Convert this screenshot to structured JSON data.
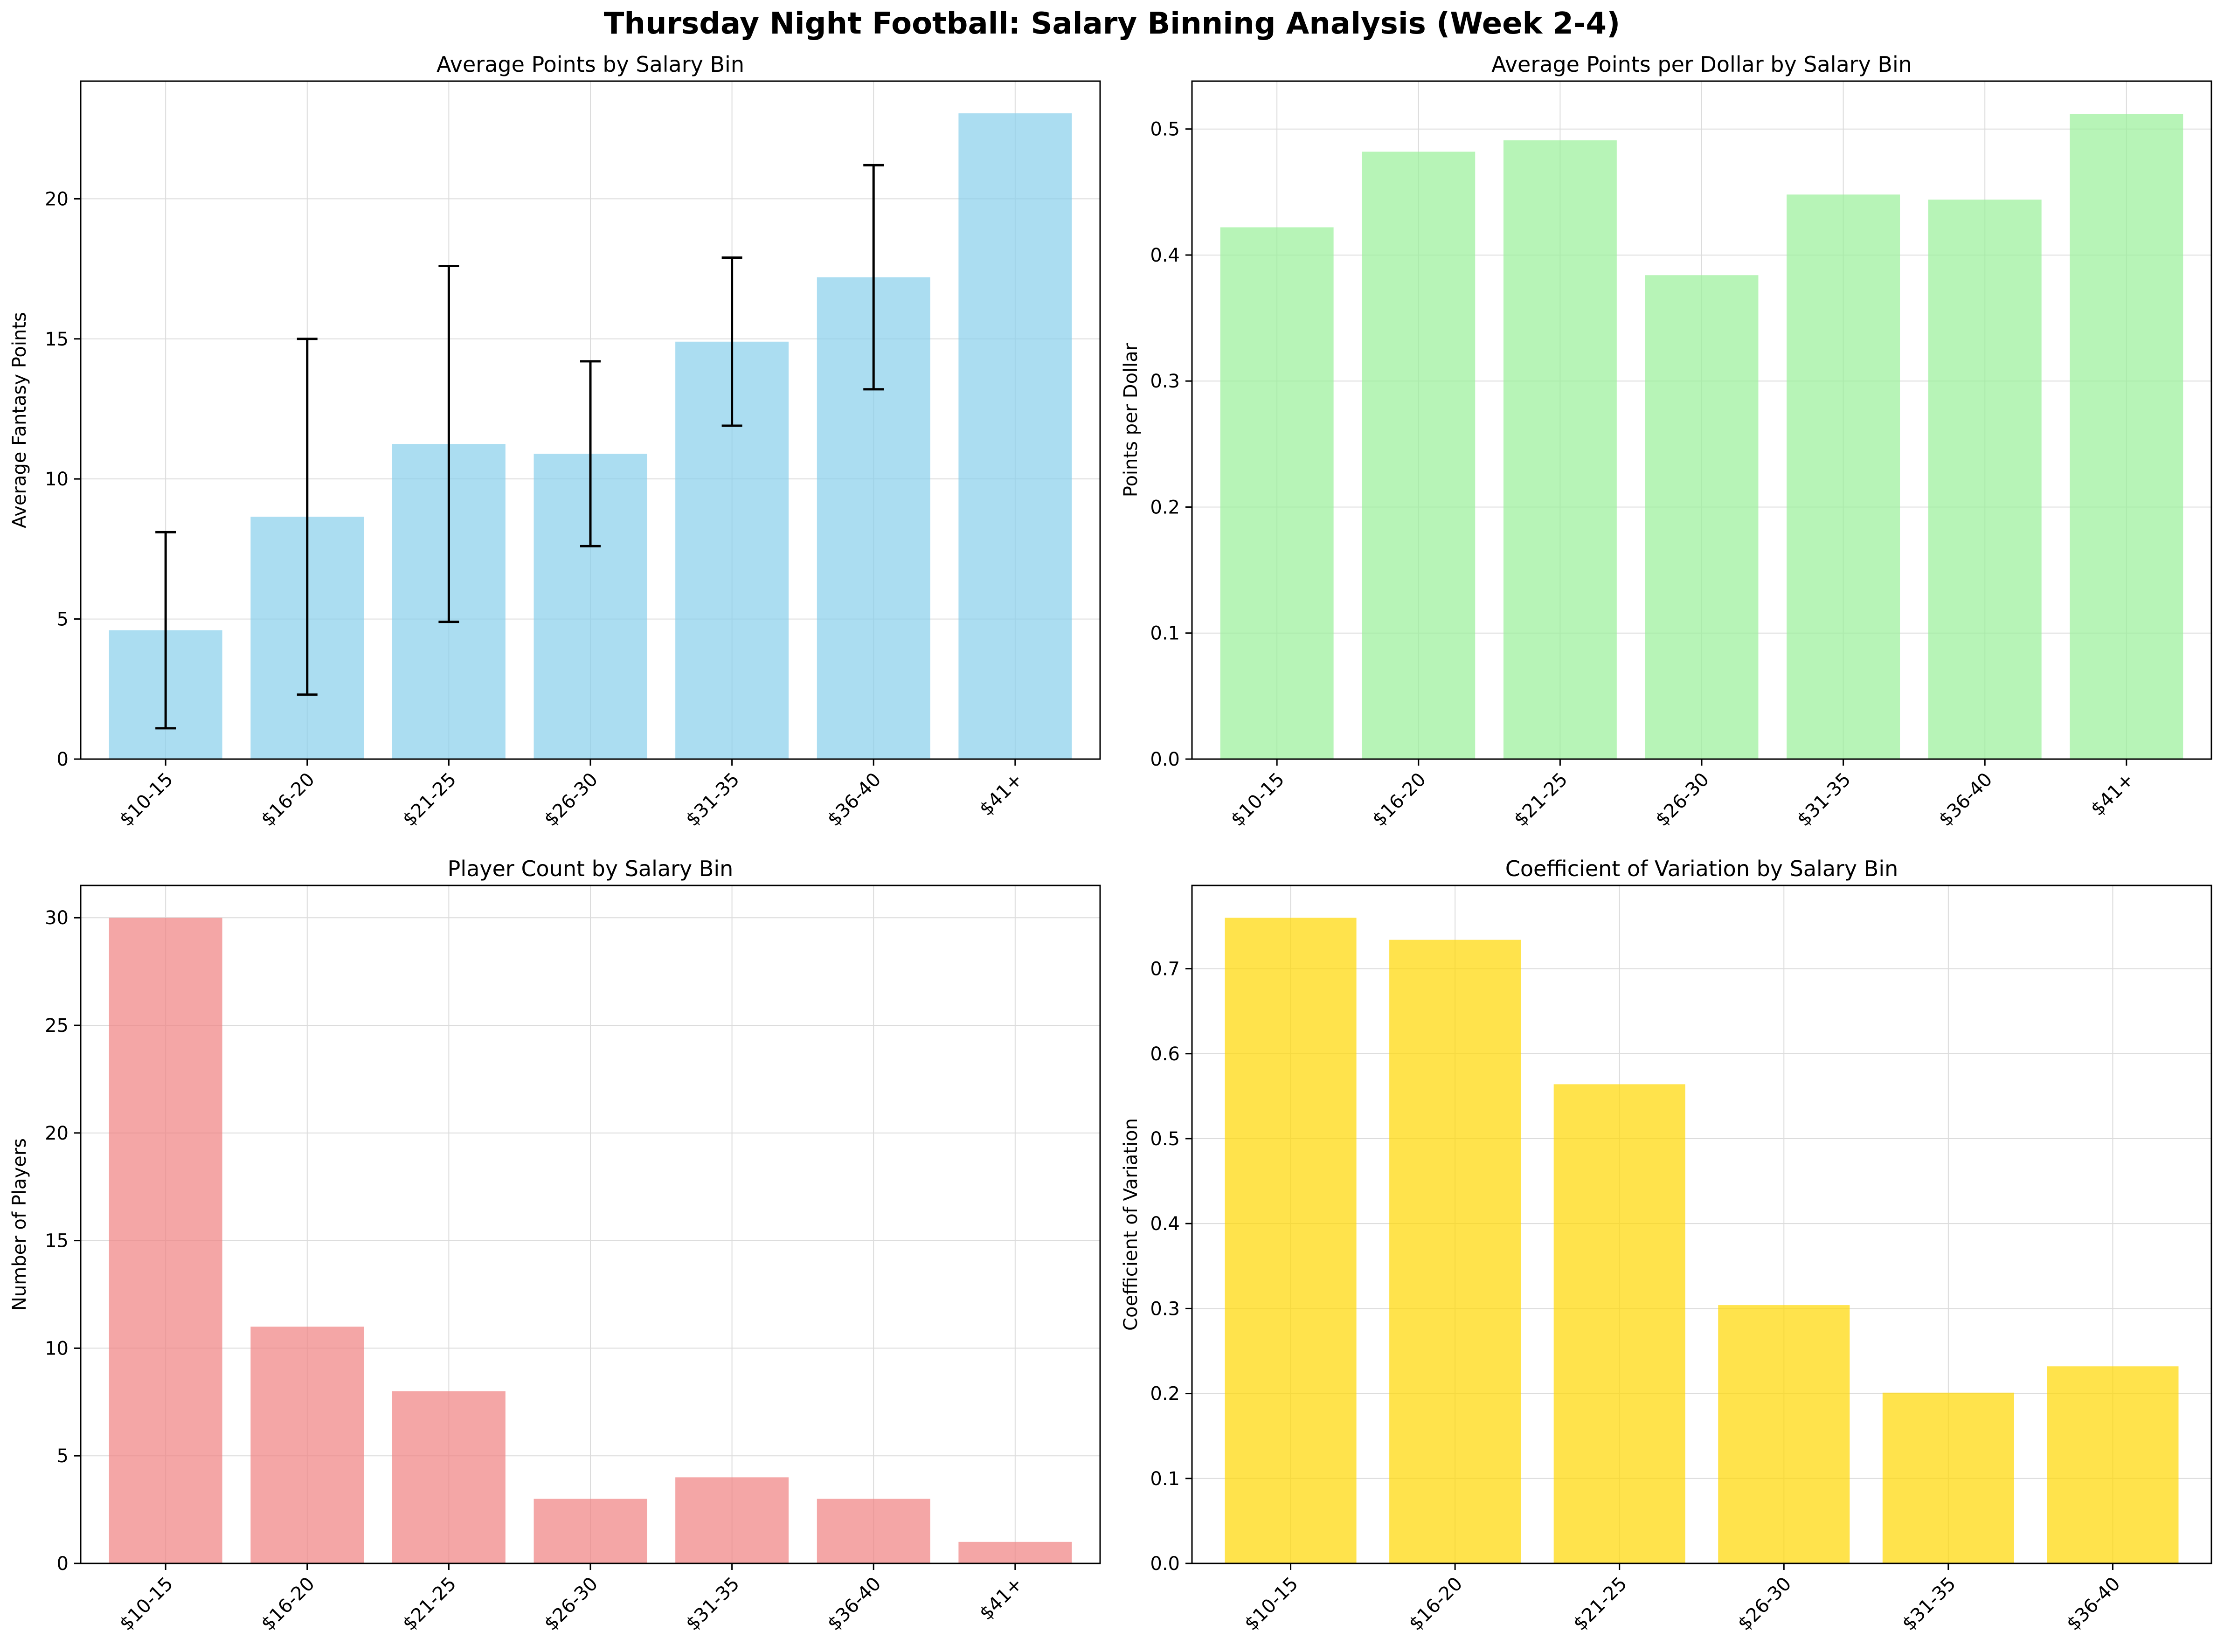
{
  "figure": {
    "title": "Thursday Night Football: Salary Binning Analysis (Week 2-4)"
  },
  "chart_data": [
    {
      "type": "bar",
      "title": "Average Points by Salary Bin",
      "xlabel": "",
      "ylabel": "Average Fantasy Points",
      "categories": [
        "$10-15",
        "$16-20",
        "$21-25",
        "$26-30",
        "$31-35",
        "$36-40",
        "$41+"
      ],
      "values": [
        4.6,
        8.65,
        11.25,
        10.9,
        14.9,
        17.2,
        23.05
      ],
      "error": [
        3.5,
        6.35,
        6.35,
        3.3,
        3.0,
        4.0,
        null
      ],
      "ylim": [
        0,
        24.2
      ],
      "yticks": [
        0,
        5,
        10,
        15,
        20
      ],
      "tick_labels": [
        "0",
        "5",
        "10",
        "15",
        "20"
      ],
      "color": "#87ceeb",
      "grid": true
    },
    {
      "type": "bar",
      "title": "Average Points per Dollar by Salary Bin",
      "xlabel": "",
      "ylabel": "Points per Dollar",
      "categories": [
        "$10-15",
        "$16-20",
        "$21-25",
        "$26-30",
        "$31-35",
        "$36-40",
        "$41+"
      ],
      "values": [
        0.422,
        0.482,
        0.491,
        0.384,
        0.448,
        0.444,
        0.512
      ],
      "ylim": [
        0,
        0.538
      ],
      "yticks": [
        0.0,
        0.1,
        0.2,
        0.3,
        0.4,
        0.5
      ],
      "tick_labels": [
        "0.0",
        "0.1",
        "0.2",
        "0.3",
        "0.4",
        "0.5"
      ],
      "color": "#98f098",
      "grid": true
    },
    {
      "type": "bar",
      "title": "Player Count by Salary Bin",
      "xlabel": "",
      "ylabel": "Number of Players",
      "categories": [
        "$10-15",
        "$16-20",
        "$21-25",
        "$26-30",
        "$31-35",
        "$36-40",
        "$41+"
      ],
      "values": [
        30,
        11,
        8,
        3,
        4,
        3,
        1
      ],
      "ylim": [
        0,
        31.5
      ],
      "yticks": [
        0,
        5,
        10,
        15,
        20,
        25,
        30
      ],
      "tick_labels": [
        "0",
        "5",
        "10",
        "15",
        "20",
        "25",
        "30"
      ],
      "color": "#f08080",
      "grid": true
    },
    {
      "type": "bar",
      "title": "Coefficient of Variation by Salary Bin",
      "xlabel": "",
      "ylabel": "Coefficient of Variation",
      "categories": [
        "$10-15",
        "$16-20",
        "$21-25",
        "$26-30",
        "$31-35",
        "$36-40"
      ],
      "values": [
        0.76,
        0.734,
        0.564,
        0.304,
        0.201,
        0.232
      ],
      "ylim": [
        0,
        0.798
      ],
      "yticks": [
        0.0,
        0.1,
        0.2,
        0.3,
        0.4,
        0.5,
        0.6,
        0.7
      ],
      "tick_labels": [
        "0.0",
        "0.1",
        "0.2",
        "0.3",
        "0.4",
        "0.5",
        "0.6",
        "0.7"
      ],
      "color": "#ffd700",
      "grid": true
    }
  ]
}
